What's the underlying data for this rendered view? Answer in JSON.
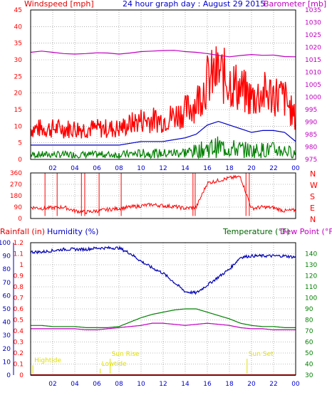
{
  "colors": {
    "windspeed": "#ff0000",
    "windavg": "#0000c8",
    "gust_low": "#008000",
    "barometer": "#c000c0",
    "direction": "#ff0000",
    "humidity": "#0000b4",
    "temperature": "#008000",
    "dewpoint": "#c000c0",
    "rain": "#ff0000",
    "axis": "#000000",
    "grid": "#808080",
    "yellow": "#e0e000"
  },
  "header": {
    "windspeed_label": "Windspeed [mph]",
    "title": "24 hour graph day : August 29 2015",
    "barometer_label": "Barometer [mb]"
  },
  "panel3_header": {
    "rainfall_label": "Rainfall (in)",
    "humidity_label": "Humidity (%)",
    "temperature_label": "Temperature (°F)",
    "dewpoint_label": "Dew Point (°F)"
  },
  "events": {
    "hightide": "Hightide",
    "lowtide": "Lowtide",
    "sunrise": "Sun Rise",
    "sunset": "Sun Set"
  },
  "chart_data": [
    {
      "type": "line",
      "panel": "wind-barometer",
      "x_ticks": [
        "02",
        "04",
        "06",
        "08",
        "10",
        "12",
        "14",
        "16",
        "18",
        "20",
        "22",
        "00"
      ],
      "ylim": [
        0,
        45
      ],
      "y_ticks": [
        0,
        5,
        10,
        15,
        20,
        25,
        30,
        35,
        40,
        45
      ],
      "ylim_right": [
        975,
        1035
      ],
      "y_ticks_right": [
        975,
        980,
        985,
        990,
        995,
        1000,
        1005,
        1010,
        1015,
        1020,
        1025,
        1030,
        1035
      ],
      "x_hours": [
        0,
        1,
        2,
        3,
        4,
        5,
        6,
        7,
        8,
        9,
        10,
        11,
        12,
        13,
        14,
        15,
        16,
        17,
        18,
        19,
        20,
        21,
        22,
        23,
        24
      ],
      "series": [
        {
          "name": "Windspeed [mph]",
          "axis": "left",
          "values": [
            6,
            6,
            6,
            6,
            6,
            6,
            6,
            6,
            6,
            7,
            8,
            8,
            8,
            9,
            10,
            12,
            17,
            19,
            17,
            15,
            13,
            14,
            14,
            13,
            8
          ]
        },
        {
          "name": "Barometer [mb]",
          "axis": "right",
          "values": [
            1018,
            1018.5,
            1018,
            1017.5,
            1017.3,
            1017.5,
            1017.8,
            1017.7,
            1017.3,
            1017.7,
            1018.3,
            1018.5,
            1018.7,
            1018.8,
            1018.3,
            1018,
            1017.5,
            1016.8,
            1016.2,
            1016.7,
            1017.1,
            1016.8,
            1016.9,
            1016.3,
            1016.2
          ]
        }
      ]
    },
    {
      "type": "line",
      "panel": "wind-direction",
      "ylim": [
        0,
        360
      ],
      "y_ticks": [
        0,
        90,
        180,
        270,
        360
      ],
      "right_labels": [
        "N",
        "W",
        "S",
        "E",
        "N"
      ],
      "x_hours": [
        0,
        1,
        2,
        3,
        4,
        5,
        6,
        7,
        8,
        9,
        10,
        11,
        12,
        13,
        14,
        15,
        16,
        17,
        18,
        19,
        20,
        21,
        22,
        23,
        24
      ],
      "values": [
        90,
        80,
        85,
        90,
        60,
        50,
        60,
        70,
        80,
        90,
        100,
        110,
        100,
        95,
        80,
        90,
        280,
        300,
        320,
        330,
        80,
        90,
        85,
        60,
        65
      ]
    },
    {
      "type": "line",
      "panel": "rain-humidity-temperature",
      "ylim_rain": [
        0,
        1.2
      ],
      "y_ticks_rain": [
        0,
        0.1,
        0.2,
        0.3,
        0.4,
        0.5,
        0.6,
        0.7,
        0.8,
        0.9,
        1,
        1.1,
        1.2
      ],
      "ylim_humidity": [
        0,
        100
      ],
      "y_ticks_humidity": [
        0,
        10,
        20,
        30,
        40,
        50,
        60,
        70,
        80,
        90,
        100
      ],
      "ylim_temp": [
        30,
        150
      ],
      "y_ticks_temp": [
        30,
        40,
        50,
        60,
        70,
        80,
        90,
        100,
        110,
        120,
        130,
        140
      ],
      "x_hours": [
        0,
        1,
        2,
        3,
        4,
        5,
        6,
        7,
        8,
        9,
        10,
        11,
        12,
        13,
        14,
        15,
        16,
        17,
        18,
        19,
        20,
        21,
        22,
        23,
        24
      ],
      "series": [
        {
          "name": "Humidity (%)",
          "axis": "humidity",
          "values": [
            93,
            93,
            94,
            95,
            95,
            95,
            96,
            96,
            96,
            92,
            86,
            81,
            77,
            70,
            63,
            62,
            68,
            74,
            80,
            89,
            90,
            90,
            90,
            90,
            89
          ]
        },
        {
          "name": "Temperature (°F)",
          "axis": "temp",
          "values": [
            75,
            75,
            74,
            74,
            74,
            73,
            73,
            73,
            74,
            78,
            82,
            85,
            87,
            89,
            90,
            90,
            87,
            84,
            81,
            77,
            75,
            74,
            74,
            73,
            73
          ]
        },
        {
          "name": "Dew Point (°F)",
          "axis": "temp",
          "values": [
            72,
            72,
            72,
            72,
            72,
            71,
            71,
            72,
            73,
            74,
            75,
            77,
            77,
            76,
            75,
            76,
            77,
            76,
            75,
            73,
            72,
            72,
            71,
            71,
            71
          ]
        },
        {
          "name": "Rainfall (in)",
          "axis": "rain",
          "values": [
            0,
            0,
            0,
            0,
            0,
            0,
            0,
            0,
            0,
            0,
            0,
            0,
            0,
            0,
            0,
            0,
            0,
            0,
            0,
            0,
            0,
            0,
            0,
            0,
            0
          ]
        }
      ]
    }
  ]
}
